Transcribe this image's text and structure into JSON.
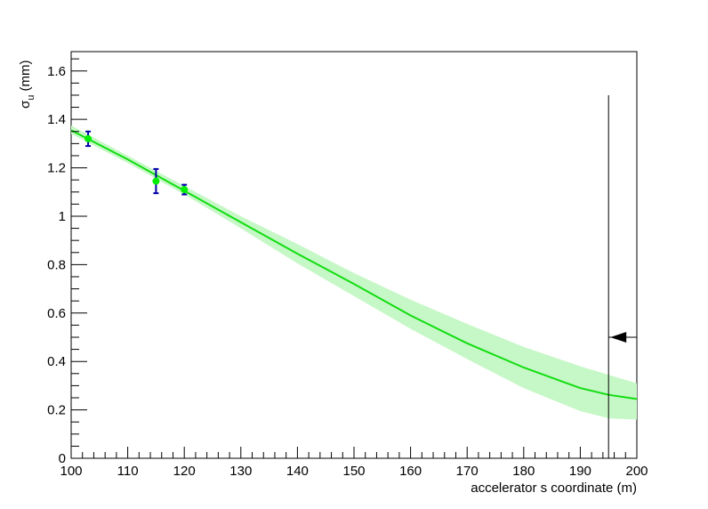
{
  "chart_data": {
    "type": "scatter",
    "title": "",
    "xlabel": "accelerator s coordinate (m)",
    "ylabel": "σ",
    "ylabel_sub": "u",
    "ylabel_unit": " (mm)",
    "xlim": [
      100,
      200
    ],
    "ylim": [
      0,
      1.68
    ],
    "x_ticks": [
      100,
      110,
      120,
      130,
      140,
      150,
      160,
      170,
      180,
      190,
      200
    ],
    "y_ticks": [
      0,
      0.2,
      0.4,
      0.6,
      0.8,
      1,
      1.2,
      1.4,
      1.6
    ],
    "y_tick_labels": [
      "0",
      "0.2",
      "0.4",
      "0.6",
      "0.8",
      "1",
      "1.2",
      "1.4",
      "1.6"
    ],
    "grid": false,
    "series": [
      {
        "kind": "measurements",
        "color": "#00ee00",
        "errorbar_color": "#0000aa",
        "points": [
          {
            "x": 103.0,
            "y": 1.32,
            "err": 0.03
          },
          {
            "x": 115.0,
            "y": 1.145,
            "err": 0.05
          },
          {
            "x": 120.0,
            "y": 1.11,
            "err": 0.02
          }
        ]
      },
      {
        "kind": "fit",
        "color": "#11dd11",
        "x": [
          100,
          110,
          120,
          130,
          140,
          150,
          160,
          170,
          180,
          190,
          195,
          200
        ],
        "y": [
          1.355,
          1.235,
          1.105,
          0.975,
          0.845,
          0.72,
          0.59,
          0.475,
          0.375,
          0.29,
          0.262,
          0.245
        ]
      },
      {
        "kind": "band",
        "color": "#c6f7c6",
        "x": [
          100,
          110,
          120,
          130,
          140,
          150,
          160,
          170,
          180,
          190,
          195,
          200
        ],
        "upper": [
          1.375,
          1.25,
          1.125,
          1.0,
          0.885,
          0.765,
          0.655,
          0.555,
          0.46,
          0.38,
          0.345,
          0.31
        ],
        "lower": [
          1.34,
          1.22,
          1.09,
          0.95,
          0.805,
          0.67,
          0.535,
          0.41,
          0.29,
          0.195,
          0.165,
          0.16
        ]
      }
    ],
    "annotations": [
      {
        "kind": "vertical-line",
        "x": 195,
        "y_from": 0,
        "y_to": 1.5,
        "color": "#000000"
      },
      {
        "kind": "arrow",
        "from_x": 200,
        "to_x": 195,
        "y": 0.5,
        "direction": "left",
        "color": "#000000"
      }
    ]
  }
}
